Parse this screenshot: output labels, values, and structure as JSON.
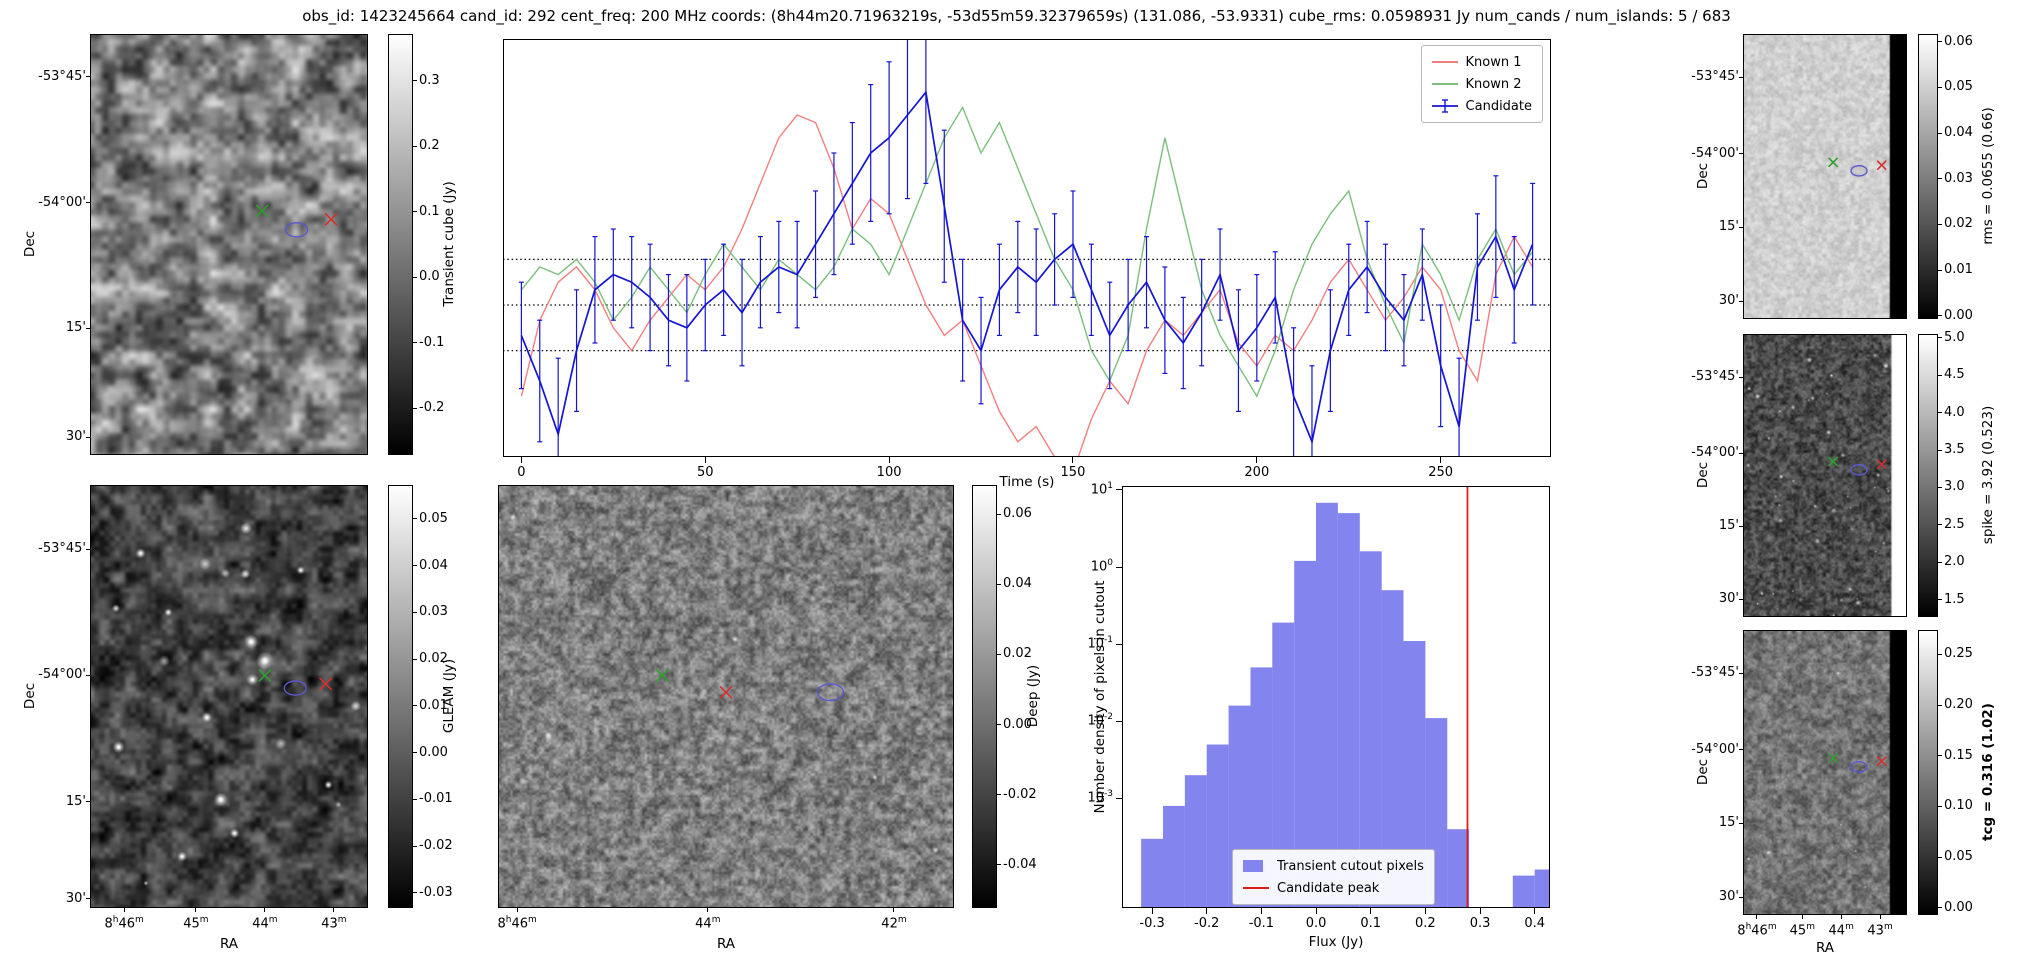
{
  "title": "obs_id: 1423245664 cand_id: 292 cent_freq: 200 MHz coords: (8h44m20.71963219s, -53d55m59.32379659s) (131.086, -53.9331) cube_rms: 0.0598931 Jy num_cands / num_islands: 5 / 683",
  "colors": {
    "known1": "#f08080",
    "known2": "#7cbf7c",
    "candidate": "#1515d3",
    "hist_fill": "#8484ee",
    "candidate_peak_line": "#dd1c1c",
    "marker_green": "#2e9e2e",
    "marker_red": "#d43030",
    "marker_ellipse": "#5a5ad0"
  },
  "panels": {
    "transient": {
      "dec_label": "Dec",
      "dec_ticks": [
        "-53°45'",
        "-54°00'",
        "15'",
        "30'"
      ],
      "colorbar": {
        "label": "Transient cube (Jy)",
        "tick_vals": [
          0.3,
          0.2,
          0.1,
          0.0,
          -0.1,
          -0.2
        ],
        "tick_labels": [
          "0.3",
          "0.2",
          "0.1",
          "0.0",
          "-0.1",
          "-0.2"
        ],
        "min": -0.27,
        "max": 0.37
      },
      "markers": [
        {
          "shape": "x",
          "name": "green-x-marker",
          "color_key": "marker_green",
          "fx": 0.62,
          "fy": 0.42
        },
        {
          "shape": "ellipse",
          "name": "candidate-ellipse-marker",
          "color_key": "marker_ellipse",
          "fx": 0.745,
          "fy": 0.465
        },
        {
          "shape": "x",
          "name": "red-x-marker",
          "color_key": "marker_red",
          "fx": 0.87,
          "fy": 0.44
        }
      ]
    },
    "gleam": {
      "dec_label": "Dec",
      "dec_ticks": [
        "-53°45'",
        "-54°00'",
        "15'",
        "30'"
      ],
      "ra_label": "RA",
      "ra_ticks": [
        "8h46m",
        "45m",
        "44m",
        "43m"
      ],
      "colorbar": {
        "label": "GLEAM (Jy)",
        "tick_vals": [
          0.05,
          0.04,
          0.03,
          0.02,
          0.01,
          0.0,
          -0.01,
          -0.02,
          -0.03
        ],
        "tick_labels": [
          "0.05",
          "0.04",
          "0.03",
          "0.02",
          "0.01",
          "0.00",
          "-0.01",
          "-0.02",
          "-0.03"
        ],
        "min": -0.033,
        "max": 0.057
      },
      "markers": [
        {
          "shape": "x",
          "name": "green-x-marker",
          "color_key": "marker_green",
          "fx": 0.63,
          "fy": 0.45
        },
        {
          "shape": "ellipse",
          "name": "candidate-ellipse-marker",
          "color_key": "marker_ellipse",
          "fx": 0.74,
          "fy": 0.48
        },
        {
          "shape": "x",
          "name": "red-x-marker",
          "color_key": "marker_red",
          "fx": 0.85,
          "fy": 0.47
        }
      ]
    },
    "deep": {
      "ra_label": "RA",
      "ra_ticks": [
        "8h46m",
        "44m",
        "42m"
      ],
      "colorbar": {
        "label": "Deep (Jy)",
        "tick_vals": [
          0.06,
          0.04,
          0.02,
          0.0,
          -0.02,
          -0.04
        ],
        "tick_labels": [
          "0.06",
          "0.04",
          "0.02",
          "0.00",
          "-0.02",
          "-0.04"
        ],
        "min": -0.052,
        "max": 0.068
      },
      "markers": [
        {
          "shape": "x",
          "name": "green-x-marker",
          "color_key": "marker_green",
          "fx": 0.36,
          "fy": 0.45
        },
        {
          "shape": "x",
          "name": "red-x-marker",
          "color_key": "marker_red",
          "fx": 0.5,
          "fy": 0.49
        },
        {
          "shape": "ellipse",
          "name": "candidate-ellipse-marker",
          "color_key": "marker_ellipse",
          "fx": 0.73,
          "fy": 0.49
        }
      ]
    },
    "rms": {
      "dec_label": "Dec",
      "dec_ticks": [
        "-53°45'",
        "-54°00'",
        "15'",
        "30'"
      ],
      "colorbar": {
        "label": "rms = 0.0655 (0.66)",
        "tick_vals": [
          0.06,
          0.05,
          0.04,
          0.03,
          0.02,
          0.01,
          0.0
        ],
        "tick_labels": [
          "0.06",
          "0.05",
          "0.04",
          "0.03",
          "0.02",
          "0.01",
          "0.00"
        ],
        "min": -0.0005,
        "max": 0.0615
      },
      "markers": [
        {
          "shape": "x",
          "name": "green-x-marker",
          "color_key": "marker_green",
          "fx": 0.55,
          "fy": 0.45
        },
        {
          "shape": "ellipse",
          "name": "candidate-ellipse-marker",
          "color_key": "marker_ellipse",
          "fx": 0.71,
          "fy": 0.48
        },
        {
          "shape": "x",
          "name": "red-x-marker",
          "color_key": "marker_red",
          "fx": 0.85,
          "fy": 0.46
        }
      ]
    },
    "spike": {
      "dec_label": "Dec",
      "dec_ticks": [
        "-53°45'",
        "-54°00'",
        "15'",
        "30'"
      ],
      "colorbar": {
        "label": "spike = 3.92 (0.523)",
        "tick_vals": [
          5.0,
          4.5,
          4.0,
          3.5,
          3.0,
          2.5,
          2.0,
          1.5
        ],
        "tick_labels": [
          "5.0",
          "4.5",
          "4.0",
          "3.5",
          "3.0",
          "2.5",
          "2.0",
          "1.5"
        ],
        "min": 1.28,
        "max": 5.04
      },
      "markers": [
        {
          "shape": "x",
          "name": "green-x-marker",
          "color_key": "marker_green",
          "fx": 0.55,
          "fy": 0.45
        },
        {
          "shape": "ellipse",
          "name": "candidate-ellipse-marker",
          "color_key": "marker_ellipse",
          "fx": 0.71,
          "fy": 0.48
        },
        {
          "shape": "x",
          "name": "red-x-marker",
          "color_key": "marker_red",
          "fx": 0.85,
          "fy": 0.46
        }
      ]
    },
    "tcg": {
      "dec_label": "Dec",
      "dec_ticks": [
        "-53°45'",
        "-54°00'",
        "15'",
        "30'"
      ],
      "ra_label": "RA",
      "ra_ticks": [
        "8h46m",
        "45m",
        "44m",
        "43m"
      ],
      "colorbar": {
        "label": "tcg = 0.316 (1.02)",
        "bold": true,
        "tick_vals": [
          0.25,
          0.2,
          0.15,
          0.1,
          0.05,
          0.0
        ],
        "tick_labels": [
          "0.25",
          "0.20",
          "0.15",
          "0.10",
          "0.05",
          "0.00"
        ],
        "min": -0.006,
        "max": 0.273
      },
      "markers": [
        {
          "shape": "x",
          "name": "green-x-marker",
          "color_key": "marker_green",
          "fx": 0.55,
          "fy": 0.45
        },
        {
          "shape": "ellipse",
          "name": "candidate-ellipse-marker",
          "color_key": "marker_ellipse",
          "fx": 0.71,
          "fy": 0.48
        },
        {
          "shape": "x",
          "name": "red-x-marker",
          "color_key": "marker_red",
          "fx": 0.85,
          "fy": 0.46
        }
      ]
    }
  },
  "chart_data": [
    {
      "type": "line",
      "title": "",
      "xlabel": "Time (s)",
      "ylabel": "",
      "x_ticks": [
        0,
        50,
        100,
        150,
        200,
        250
      ],
      "xlim": [
        -5,
        280
      ],
      "ylim": [
        -0.2,
        0.35
      ],
      "thresholds": [
        0.06,
        0.0,
        -0.06
      ],
      "legend_position": "upper right",
      "x": [
        0,
        5,
        10,
        15,
        20,
        25,
        30,
        35,
        40,
        45,
        50,
        55,
        60,
        65,
        70,
        75,
        80,
        85,
        90,
        95,
        100,
        105,
        110,
        115,
        120,
        125,
        130,
        135,
        140,
        145,
        150,
        155,
        160,
        165,
        170,
        175,
        180,
        185,
        190,
        195,
        200,
        205,
        210,
        215,
        220,
        225,
        230,
        235,
        240,
        245,
        250,
        255,
        260,
        265,
        270,
        275
      ],
      "series": [
        {
          "name": "Known 1",
          "color_key": "known1",
          "values": [
            -0.12,
            -0.02,
            0.03,
            0.05,
            0.02,
            -0.03,
            -0.06,
            -0.02,
            0.01,
            0.04,
            0.02,
            0.05,
            0.1,
            0.16,
            0.22,
            0.25,
            0.24,
            0.18,
            0.1,
            0.14,
            0.12,
            0.06,
            0.0,
            -0.04,
            -0.02,
            -0.08,
            -0.14,
            -0.18,
            -0.16,
            -0.2,
            -0.22,
            -0.15,
            -0.1,
            -0.13,
            -0.06,
            -0.02,
            -0.04,
            -0.01,
            0.02,
            -0.05,
            -0.08,
            -0.04,
            -0.06,
            -0.02,
            0.03,
            0.06,
            0.02,
            -0.02,
            0.01,
            0.05,
            0.02,
            -0.06,
            -0.1,
            0.04,
            0.09,
            0.05
          ]
        },
        {
          "name": "Known 2",
          "color_key": "known2",
          "values": [
            0.02,
            0.05,
            0.04,
            0.06,
            0.03,
            -0.02,
            0.01,
            0.05,
            0.02,
            -0.01,
            0.04,
            0.08,
            0.05,
            0.02,
            0.06,
            0.04,
            0.02,
            0.05,
            0.1,
            0.08,
            0.04,
            0.1,
            0.16,
            0.22,
            0.26,
            0.2,
            0.24,
            0.18,
            0.12,
            0.06,
            0.02,
            -0.06,
            -0.1,
            -0.04,
            0.1,
            0.22,
            0.12,
            0.02,
            -0.04,
            -0.08,
            -0.12,
            -0.06,
            0.02,
            0.08,
            0.12,
            0.15,
            0.06,
            0.0,
            -0.05,
            0.08,
            0.04,
            -0.02,
            0.06,
            0.1,
            0.04,
            0.07
          ]
        },
        {
          "name": "Candidate",
          "color_key": "candidate",
          "values": [
            -0.04,
            -0.1,
            -0.17,
            -0.06,
            0.02,
            0.04,
            0.03,
            0.01,
            -0.02,
            -0.03,
            0.0,
            0.02,
            -0.01,
            0.03,
            0.05,
            0.04,
            0.08,
            0.12,
            0.16,
            0.2,
            0.22,
            0.25,
            0.28,
            0.13,
            -0.02,
            -0.06,
            0.02,
            0.05,
            0.03,
            0.06,
            0.08,
            0.02,
            -0.04,
            0.0,
            0.03,
            -0.02,
            -0.05,
            -0.01,
            0.04,
            -0.06,
            -0.03,
            0.01,
            -0.12,
            -0.18,
            -0.06,
            0.02,
            0.05,
            0.01,
            -0.02,
            0.04,
            -0.08,
            -0.16,
            0.05,
            0.09,
            0.02,
            0.08
          ],
          "errors": [
            0.07,
            0.08,
            0.1,
            0.08,
            0.07,
            0.06,
            0.06,
            0.07,
            0.06,
            0.07,
            0.06,
            0.06,
            0.07,
            0.06,
            0.06,
            0.07,
            0.07,
            0.08,
            0.08,
            0.09,
            0.1,
            0.11,
            0.12,
            0.1,
            0.08,
            0.07,
            0.06,
            0.06,
            0.07,
            0.06,
            0.07,
            0.06,
            0.07,
            0.06,
            0.06,
            0.07,
            0.06,
            0.07,
            0.06,
            0.08,
            0.07,
            0.06,
            0.09,
            0.1,
            0.08,
            0.06,
            0.06,
            0.07,
            0.06,
            0.06,
            0.08,
            0.09,
            0.07,
            0.08,
            0.07,
            0.08
          ]
        }
      ]
    },
    {
      "type": "bar",
      "title": "",
      "xlabel": "Flux (Jy)",
      "ylabel": "Number density of pixels in cutout",
      "yscale": "log",
      "bin_width": 0.04,
      "bin_left_edges": [
        -0.32,
        -0.28,
        -0.24,
        -0.2,
        -0.16,
        -0.12,
        -0.08,
        -0.04,
        0.0,
        0.04,
        0.08,
        0.12,
        0.16,
        0.2,
        0.24,
        0.28,
        0.32,
        0.36,
        0.4
      ],
      "values": [
        0.0003,
        0.0008,
        0.002,
        0.005,
        0.016,
        0.05,
        0.19,
        1.2,
        6.8,
        5.0,
        1.6,
        0.5,
        0.11,
        0.011,
        0.0004,
        0,
        0,
        0.0001,
        0.00012
      ],
      "x_ticks": [
        -0.3,
        -0.2,
        -0.1,
        0.0,
        0.1,
        0.2,
        0.3,
        0.4
      ],
      "y_tick_exponents": [
        1,
        0,
        -1,
        -2,
        -3
      ],
      "xlim": [
        -0.355,
        0.428
      ],
      "ylim_log10": [
        -4.42,
        1.05
      ],
      "candidate_peak": 0.277,
      "legend": [
        {
          "label": "Transient cutout pixels",
          "type": "patch"
        },
        {
          "label": "Candidate peak",
          "type": "line"
        }
      ]
    }
  ]
}
